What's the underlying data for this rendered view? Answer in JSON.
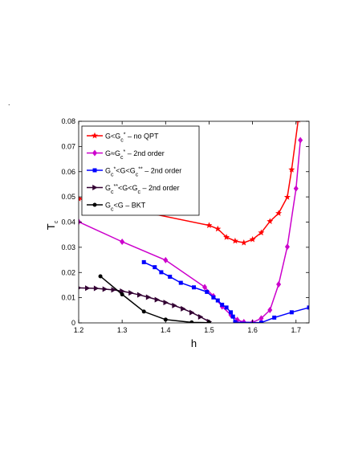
{
  "page_mark": ".",
  "chart_data": {
    "type": "line",
    "xlabel": "h",
    "ylabel": "T",
    "ylabel_sub": "c",
    "xlim": [
      1.2,
      1.73
    ],
    "ylim": [
      0,
      0.08
    ],
    "xticks": [
      "1.2",
      "1.3",
      "1.4",
      "1.5",
      "1.6",
      "1.7"
    ],
    "yticks": [
      "0",
      "0.01",
      "0.02",
      "0.03",
      "0.04",
      "0.05",
      "0.06",
      "0.07",
      "0.08"
    ],
    "grid": false,
    "legend_position": "top-left",
    "series": [
      {
        "legend": [
          {
            "t": "G<G"
          },
          {
            "t": "c",
            "sub": true
          },
          {
            "t": "*",
            "sup": true
          },
          {
            "t": " – no QPT"
          }
        ],
        "color": "#ff0000",
        "marker": "star",
        "x": [
          1.2,
          1.5,
          1.52,
          1.54,
          1.56,
          1.58,
          1.6,
          1.62,
          1.64,
          1.66,
          1.68,
          1.69,
          1.705
        ],
        "y": [
          0.0493,
          0.0387,
          0.0373,
          0.034,
          0.0325,
          0.0318,
          0.0331,
          0.0358,
          0.0403,
          0.0435,
          0.0499,
          0.0608,
          0.0805
        ]
      },
      {
        "legend": [
          {
            "t": "G≈G"
          },
          {
            "t": "c",
            "sub": true
          },
          {
            "t": "*",
            "sup": true
          },
          {
            "t": " – 2nd order"
          }
        ],
        "color": "#cc00cc",
        "marker": "diamond",
        "x": [
          1.2,
          1.3,
          1.4,
          1.49,
          1.51,
          1.53,
          1.55,
          1.565,
          1.58,
          1.6,
          1.62,
          1.64,
          1.66,
          1.68,
          1.7,
          1.71
        ],
        "y": [
          0.0401,
          0.0322,
          0.0249,
          0.0142,
          0.0106,
          0.0065,
          0.0032,
          0.0012,
          0.0003,
          0.0002,
          0.0018,
          0.0051,
          0.0153,
          0.0302,
          0.0533,
          0.0725
        ]
      },
      {
        "legend": [
          {
            "t": "G"
          },
          {
            "t": "c",
            "sub": true
          },
          {
            "t": "*",
            "sup": true
          },
          {
            "t": "<G<G"
          },
          {
            "t": "c",
            "sub": true
          },
          {
            "t": "**",
            "sup": true
          },
          {
            "t": " – 2nd order"
          }
        ],
        "color": "#0000ff",
        "marker": "square",
        "x": [
          1.35,
          1.375,
          1.39,
          1.41,
          1.435,
          1.465,
          1.495,
          1.51,
          1.52,
          1.53,
          1.54,
          1.55,
          1.555,
          1.56,
          1.62,
          1.65,
          1.69,
          1.73
        ],
        "y": [
          0.0241,
          0.0221,
          0.0201,
          0.0183,
          0.0159,
          0.0141,
          0.0123,
          0.0101,
          0.0089,
          0.0072,
          0.0061,
          0.0042,
          0.0025,
          0.0003,
          0.0001,
          0.0021,
          0.0042,
          0.0061
        ]
      },
      {
        "legend": [
          {
            "t": "G"
          },
          {
            "t": "c",
            "sub": true
          },
          {
            "t": "**",
            "sup": true
          },
          {
            "t": "<G<G"
          },
          {
            "t": "c",
            "sub": true
          },
          {
            "t": " – 2nd order"
          }
        ],
        "color": "#330033",
        "marker": "triangle-right",
        "x": [
          1.2,
          1.22,
          1.24,
          1.26,
          1.28,
          1.3,
          1.32,
          1.34,
          1.36,
          1.38,
          1.4,
          1.42,
          1.44,
          1.46,
          1.48,
          1.5
        ],
        "y": [
          0.0139,
          0.0138,
          0.0137,
          0.0134,
          0.0131,
          0.0126,
          0.0119,
          0.0111,
          0.0102,
          0.0092,
          0.0081,
          0.0069,
          0.0056,
          0.0041,
          0.0024,
          0.0005
        ]
      },
      {
        "legend": [
          {
            "t": "G"
          },
          {
            "t": "c",
            "sub": true
          },
          {
            "t": "<G – BKT"
          }
        ],
        "color": "#000000",
        "marker": "circle",
        "x": [
          1.25,
          1.3,
          1.35,
          1.4,
          1.46,
          1.5
        ],
        "y": [
          0.0185,
          0.0113,
          0.0045,
          0.0013,
          0.0002,
          0.0001
        ]
      }
    ]
  }
}
